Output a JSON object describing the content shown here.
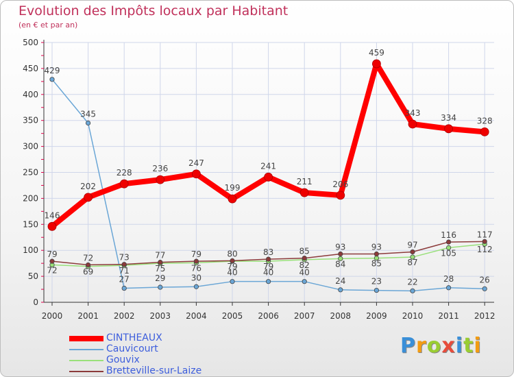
{
  "colors": {
    "title": "#c0305a",
    "axis_tick": "#e0004a",
    "grid": "#cfd6ea",
    "legend_text": "#3c5ddc"
  },
  "chart_data": {
    "type": "line",
    "title": "Evolution des Impôts locaux par Habitant",
    "subtitle": "(en € et par an)",
    "xlabel": "",
    "ylabel": "",
    "ylim": [
      0,
      500
    ],
    "yticks": [
      0,
      50,
      100,
      150,
      200,
      250,
      300,
      350,
      400,
      450,
      500
    ],
    "categories": [
      "2000",
      "2001",
      "2002",
      "2003",
      "2004",
      "2005",
      "2006",
      "2007",
      "2008",
      "2009",
      "2010",
      "2011",
      "2012"
    ],
    "series": [
      {
        "name": "CINTHEAUX",
        "color": "#ff0000",
        "values": [
          146,
          202,
          228,
          236,
          247,
          199,
          241,
          211,
          206,
          459,
          343,
          334,
          328
        ]
      },
      {
        "name": "Cauvicourt",
        "color": "#6aa6d6",
        "values": [
          429,
          345,
          27,
          29,
          30,
          40,
          40,
          40,
          24,
          23,
          22,
          28,
          26
        ]
      },
      {
        "name": "Gouvix",
        "color": "#99e07a",
        "values": [
          72,
          69,
          71,
          75,
          76,
          79,
          79,
          82,
          84,
          85,
          87,
          105,
          112
        ]
      },
      {
        "name": "Bretteville-sur-Laize",
        "color": "#8b3a3a",
        "values": [
          79,
          72,
          73,
          77,
          79,
          80,
          83,
          85,
          93,
          93,
          97,
          116,
          117
        ]
      }
    ],
    "legend_position": "bottom-left"
  },
  "logo": {
    "letters": [
      "P",
      "r",
      "o",
      "x",
      "i",
      "t",
      "i"
    ],
    "colors": [
      "#3a8fd8",
      "#f39c12",
      "#9acd32",
      "#e74c3c",
      "#3a8fd8",
      "#9acd32",
      "#f39c12"
    ]
  }
}
